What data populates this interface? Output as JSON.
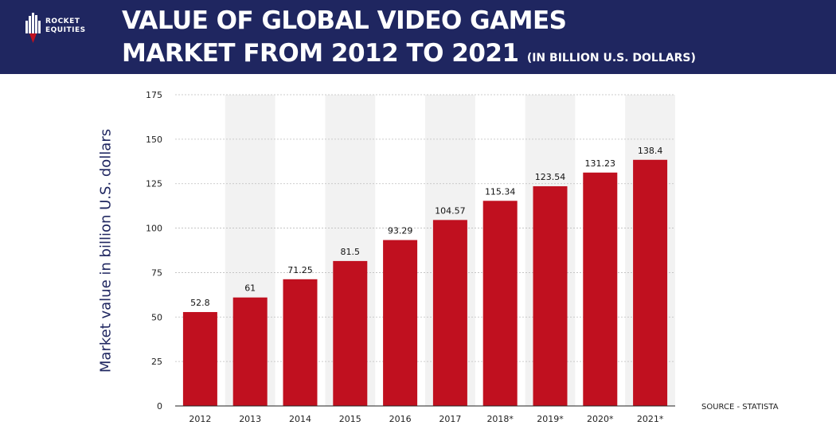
{
  "brand": {
    "line1": "ROCKET",
    "line2": "EQUITIES"
  },
  "header": {
    "title_line1": "VALUE OF GLOBAL VIDEO GAMES",
    "title_line2": "MARKET FROM 2012 TO 2021",
    "title_unit": "(IN BILLION U.S. DOLLARS)",
    "background_color": "#1f2660"
  },
  "source": "SOURCE -  STATISTA",
  "chart_data": {
    "type": "bar",
    "title": "VALUE OF GLOBAL VIDEO GAMES MARKET FROM 2012 TO 2021",
    "ylabel": "Market value in billion U.S. dollars",
    "xlabel": "",
    "categories": [
      "2012",
      "2013",
      "2014",
      "2015",
      "2016",
      "2017",
      "2018*",
      "2019*",
      "2020*",
      "2021*"
    ],
    "values": [
      52.8,
      61,
      71.25,
      81.5,
      93.29,
      104.57,
      115.34,
      123.54,
      131.23,
      138.4
    ],
    "value_labels": [
      "52.8",
      "61",
      "71.25",
      "81.5",
      "93.29",
      "104.57",
      "115.34",
      "123.54",
      "131.23",
      "138.4"
    ],
    "ylim": [
      0,
      175
    ],
    "yticks": [
      0,
      25,
      50,
      75,
      100,
      125,
      150,
      175
    ],
    "grid": true,
    "bar_color": "#c0101f",
    "band_color": "#f2f2f2"
  }
}
